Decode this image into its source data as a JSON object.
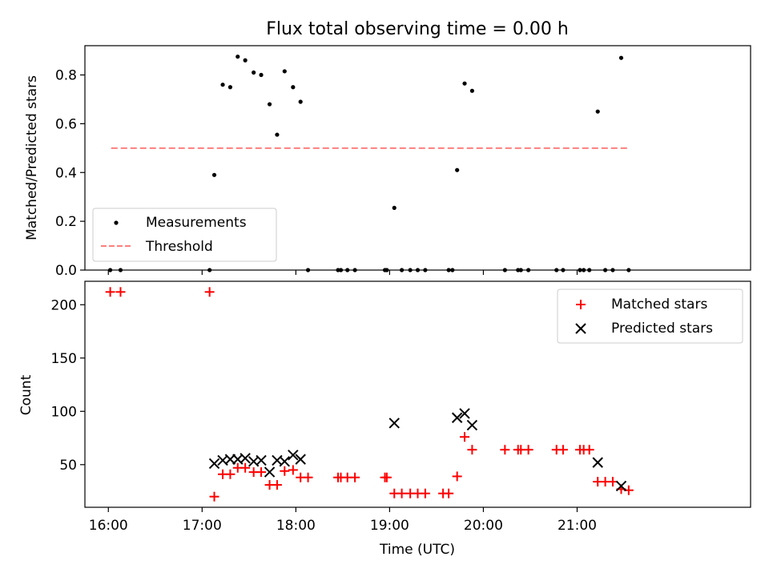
{
  "chart_data": [
    {
      "type": "scatter",
      "title": "Flux total observing time = 0.00 h",
      "xlabel": "",
      "ylabel": "Matched/Predicted stars",
      "xlim": [
        15.75,
        22.85
      ],
      "ylim": [
        0,
        0.92
      ],
      "yticks": [
        0.0,
        0.2,
        0.4,
        0.6,
        0.8
      ],
      "ytick_labels": [
        "0.0",
        "0.2",
        "0.4",
        "0.6",
        "0.8"
      ],
      "legend_position": "lower-left",
      "series": [
        {
          "name": "Measurements",
          "kind": "scatter",
          "color": "#000000",
          "x": [
            16.02,
            16.13,
            17.08,
            17.13,
            17.22,
            17.3,
            17.38,
            17.46,
            17.55,
            17.63,
            17.72,
            17.8,
            17.88,
            17.97,
            18.05,
            18.13,
            18.45,
            18.48,
            18.55,
            18.63,
            18.95,
            18.97,
            19.05,
            19.13,
            19.22,
            19.3,
            19.38,
            19.63,
            19.67,
            19.72,
            19.8,
            19.88,
            20.23,
            20.37,
            20.4,
            20.48,
            20.78,
            20.85,
            21.03,
            21.07,
            21.13,
            21.22,
            21.3,
            21.38,
            21.47,
            21.55
          ],
          "y": [
            0.0,
            0.0,
            0.0,
            0.39,
            0.76,
            0.75,
            0.875,
            0.86,
            0.81,
            0.8,
            0.68,
            0.555,
            0.815,
            0.75,
            0.69,
            0.0,
            0.0,
            0.0,
            0.0,
            0.0,
            0.0,
            0.0,
            0.255,
            0.0,
            0.0,
            0.0,
            0.0,
            0.0,
            0.0,
            0.41,
            0.765,
            0.735,
            0.0,
            0.0,
            0.0,
            0.0,
            0.0,
            0.0,
            0.0,
            0.0,
            0.0,
            0.65,
            0.0,
            0.0,
            0.87,
            0.0
          ]
        },
        {
          "name": "Threshold",
          "kind": "line",
          "color": "#ff7f7f",
          "x": [
            16.03,
            21.55
          ],
          "y": [
            0.5,
            0.5
          ]
        }
      ]
    },
    {
      "type": "scatter",
      "title": "",
      "xlabel": "Time (UTC)",
      "ylabel": "Count",
      "xlim": [
        15.75,
        22.85
      ],
      "ylim": [
        10,
        222
      ],
      "yticks": [
        50,
        100,
        150,
        200
      ],
      "ytick_labels": [
        "50",
        "100",
        "150",
        "200"
      ],
      "xticks": [
        16,
        17,
        18,
        19,
        20,
        21
      ],
      "xtick_labels": [
        "16:00",
        "17:00",
        "18:00",
        "19:00",
        "20:00",
        "21:00"
      ],
      "legend_position": "upper-right",
      "series": [
        {
          "name": "Matched stars",
          "kind": "plus",
          "color": "#ff0000",
          "x": [
            16.02,
            16.13,
            17.08,
            17.13,
            17.22,
            17.3,
            17.38,
            17.46,
            17.55,
            17.63,
            17.72,
            17.8,
            17.88,
            17.97,
            18.05,
            18.13,
            18.45,
            18.48,
            18.55,
            18.63,
            18.95,
            18.97,
            19.05,
            19.13,
            19.22,
            19.3,
            19.38,
            19.57,
            19.63,
            19.72,
            19.8,
            19.88,
            20.23,
            20.37,
            20.4,
            20.48,
            20.78,
            20.85,
            21.03,
            21.07,
            21.13,
            21.22,
            21.3,
            21.38,
            21.47,
            21.55
          ],
          "y": [
            212,
            212,
            212,
            20,
            41,
            41,
            47,
            47,
            43,
            43,
            31,
            31,
            44,
            45,
            38,
            38,
            38,
            38,
            38,
            38,
            38,
            38,
            23,
            23,
            23,
            23,
            23,
            23,
            23,
            39,
            76,
            64,
            64,
            64,
            64,
            64,
            64,
            64,
            64,
            64,
            64,
            34,
            34,
            34,
            27,
            26
          ]
        },
        {
          "name": "Predicted stars",
          "kind": "x",
          "color": "#000000",
          "x": [
            17.13,
            17.22,
            17.3,
            17.38,
            17.46,
            17.55,
            17.63,
            17.72,
            17.8,
            17.88,
            17.97,
            18.05,
            19.05,
            19.72,
            19.8,
            19.88,
            21.22,
            21.47
          ],
          "y": [
            51,
            54,
            55,
            55,
            56,
            53,
            54,
            43,
            54,
            53,
            59,
            55,
            89,
            94,
            98,
            87,
            52,
            30
          ]
        }
      ]
    }
  ]
}
